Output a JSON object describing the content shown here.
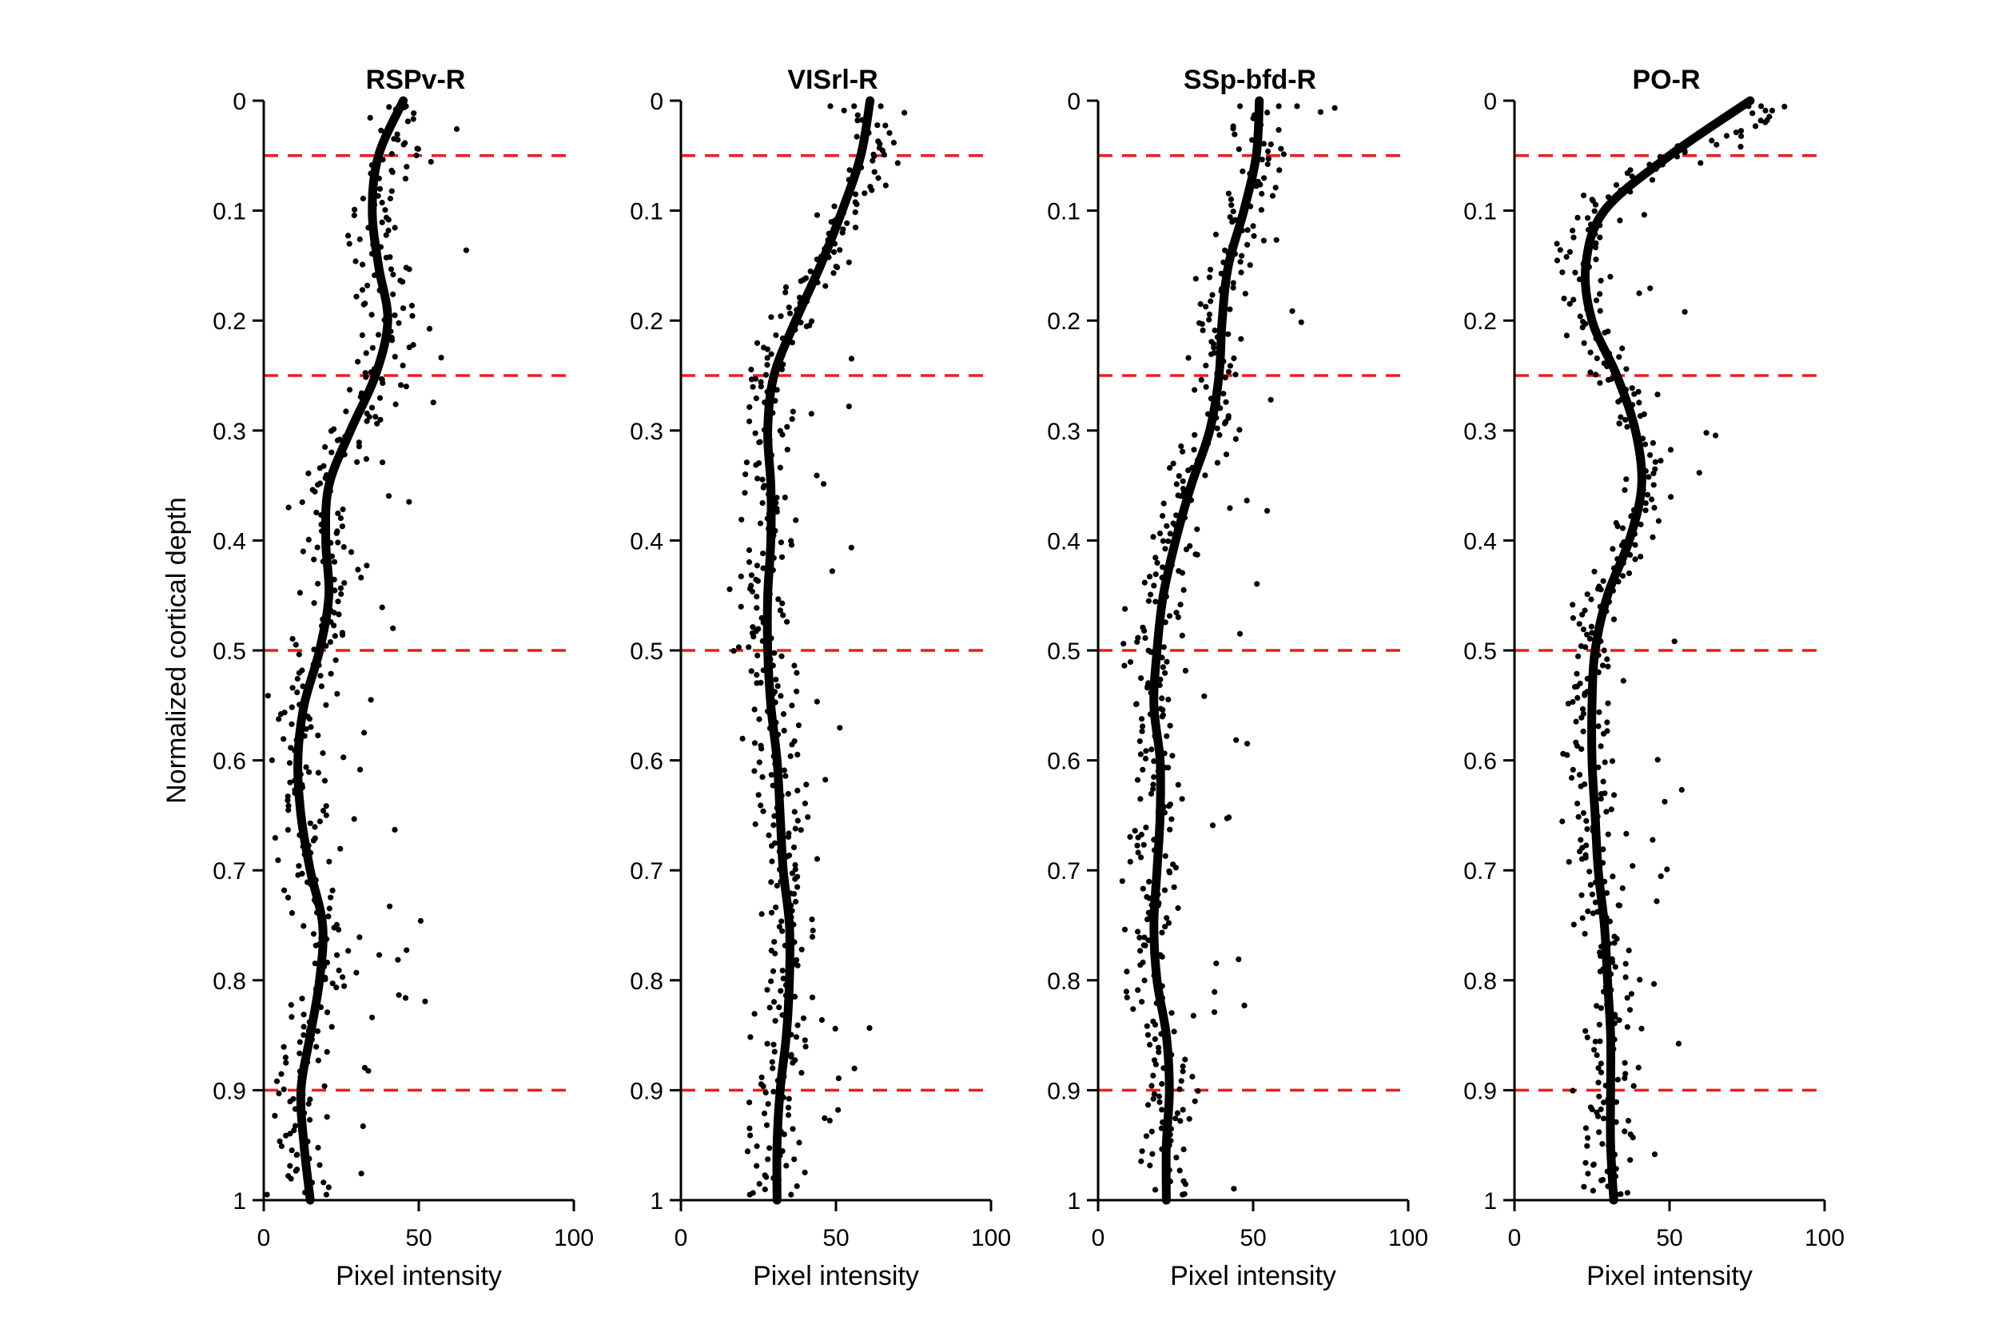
{
  "chart_data": [
    {
      "type": "scatter",
      "title": "RSPv-R",
      "xlabel": "Pixel intensity",
      "ylabel": "Normalized cortical depth",
      "xlim": [
        0,
        100
      ],
      "ylim": [
        1,
        0
      ],
      "x_ticks": [
        "0",
        "50",
        "100"
      ],
      "y_ticks": [
        "0",
        "0.1",
        "0.2",
        "0.3",
        "0.4",
        "0.5",
        "0.6",
        "0.7",
        "0.8",
        "0.9",
        "1"
      ],
      "reference_lines": [
        0.05,
        0.25,
        0.5,
        0.9
      ],
      "reference_line_color": "#e8201c",
      "trend_color": "#000000",
      "point_color": "#000000",
      "trend": {
        "depth": [
          0,
          0.05,
          0.1,
          0.15,
          0.2,
          0.25,
          0.3,
          0.35,
          0.4,
          0.45,
          0.5,
          0.55,
          0.6,
          0.65,
          0.7,
          0.75,
          0.8,
          0.85,
          0.9,
          0.95,
          1.0
        ],
        "intensity": [
          45,
          37,
          35,
          37,
          40,
          36,
          28,
          21,
          20,
          21,
          18,
          13,
          11,
          12,
          15,
          19,
          18,
          15,
          12,
          13,
          15
        ]
      },
      "scatter_profile": [
        [
          0.02,
          42
        ],
        [
          0.05,
          45
        ],
        [
          0.1,
          35
        ],
        [
          0.15,
          38
        ],
        [
          0.2,
          42
        ],
        [
          0.25,
          38
        ],
        [
          0.3,
          26
        ],
        [
          0.35,
          20
        ],
        [
          0.4,
          22
        ],
        [
          0.45,
          22
        ],
        [
          0.5,
          18
        ],
        [
          0.55,
          12
        ],
        [
          0.6,
          10
        ],
        [
          0.65,
          13
        ],
        [
          0.7,
          14
        ],
        [
          0.75,
          20
        ],
        [
          0.8,
          22
        ],
        [
          0.85,
          14
        ],
        [
          0.9,
          12
        ],
        [
          0.95,
          12
        ],
        [
          0.99,
          12
        ]
      ]
    },
    {
      "type": "scatter",
      "title": "VISrl-R",
      "xlabel": "Pixel intensity",
      "ylabel": "",
      "xlim": [
        0,
        100
      ],
      "ylim": [
        1,
        0
      ],
      "x_ticks": [
        "0",
        "50",
        "100"
      ],
      "y_ticks": [
        "0",
        "0.1",
        "0.2",
        "0.3",
        "0.4",
        "0.5",
        "0.6",
        "0.7",
        "0.8",
        "0.9",
        "1"
      ],
      "reference_lines": [
        0.05,
        0.25,
        0.5,
        0.9
      ],
      "reference_line_color": "#e8201c",
      "trend_color": "#000000",
      "point_color": "#000000",
      "trend": {
        "depth": [
          0,
          0.05,
          0.1,
          0.15,
          0.2,
          0.25,
          0.3,
          0.35,
          0.4,
          0.45,
          0.5,
          0.55,
          0.6,
          0.65,
          0.7,
          0.75,
          0.8,
          0.85,
          0.9,
          0.95,
          1.0
        ],
        "intensity": [
          61,
          58,
          52,
          45,
          37,
          30,
          28,
          29,
          29,
          28,
          28,
          29,
          31,
          32,
          33,
          35,
          35,
          34,
          32,
          31,
          31
        ]
      },
      "scatter_profile": [
        [
          0.02,
          58
        ],
        [
          0.05,
          64
        ],
        [
          0.1,
          52
        ],
        [
          0.15,
          44
        ],
        [
          0.2,
          35
        ],
        [
          0.25,
          26
        ],
        [
          0.3,
          28
        ],
        [
          0.35,
          28
        ],
        [
          0.4,
          30
        ],
        [
          0.45,
          25
        ],
        [
          0.5,
          27
        ],
        [
          0.55,
          30
        ],
        [
          0.6,
          32
        ],
        [
          0.65,
          32
        ],
        [
          0.7,
          33
        ],
        [
          0.75,
          36
        ],
        [
          0.8,
          36
        ],
        [
          0.85,
          34
        ],
        [
          0.9,
          30
        ],
        [
          0.95,
          31
        ],
        [
          0.99,
          30
        ]
      ]
    },
    {
      "type": "scatter",
      "title": "SSp-bfd-R",
      "xlabel": "Pixel intensity",
      "ylabel": "",
      "xlim": [
        0,
        100
      ],
      "ylim": [
        1,
        0
      ],
      "x_ticks": [
        "0",
        "50",
        "100"
      ],
      "y_ticks": [
        "0",
        "0.1",
        "0.2",
        "0.3",
        "0.4",
        "0.5",
        "0.6",
        "0.7",
        "0.8",
        "0.9",
        "1"
      ],
      "reference_lines": [
        0.05,
        0.25,
        0.5,
        0.9
      ],
      "reference_line_color": "#e8201c",
      "trend_color": "#000000",
      "point_color": "#000000",
      "trend": {
        "depth": [
          0,
          0.05,
          0.1,
          0.15,
          0.2,
          0.25,
          0.3,
          0.35,
          0.4,
          0.45,
          0.5,
          0.55,
          0.6,
          0.65,
          0.7,
          0.75,
          0.8,
          0.85,
          0.9,
          0.95,
          1.0
        ],
        "intensity": [
          52,
          51,
          47,
          42,
          40,
          39,
          36,
          30,
          25,
          21,
          19,
          18,
          20,
          20,
          19,
          18,
          19,
          22,
          23,
          22,
          22
        ]
      },
      "scatter_profile": [
        [
          0.02,
          52
        ],
        [
          0.05,
          55
        ],
        [
          0.1,
          46
        ],
        [
          0.15,
          42
        ],
        [
          0.2,
          38
        ],
        [
          0.25,
          40
        ],
        [
          0.3,
          36
        ],
        [
          0.35,
          28
        ],
        [
          0.4,
          24
        ],
        [
          0.45,
          20
        ],
        [
          0.5,
          18
        ],
        [
          0.55,
          18
        ],
        [
          0.6,
          20
        ],
        [
          0.65,
          20
        ],
        [
          0.7,
          18
        ],
        [
          0.75,
          16
        ],
        [
          0.8,
          18
        ],
        [
          0.85,
          22
        ],
        [
          0.9,
          23
        ],
        [
          0.95,
          22
        ],
        [
          0.99,
          22
        ]
      ]
    },
    {
      "type": "scatter",
      "title": "PO-R",
      "xlabel": "Pixel intensity",
      "ylabel": "",
      "xlim": [
        0,
        100
      ],
      "ylim": [
        1,
        0
      ],
      "x_ticks": [
        "0",
        "50",
        "100"
      ],
      "y_ticks": [
        "0",
        "0.1",
        "0.2",
        "0.3",
        "0.4",
        "0.5",
        "0.6",
        "0.7",
        "0.8",
        "0.9",
        "1"
      ],
      "reference_lines": [
        0.05,
        0.25,
        0.5,
        0.9
      ],
      "reference_line_color": "#e8201c",
      "trend_color": "#000000",
      "point_color": "#000000",
      "trend": {
        "depth": [
          0,
          0.05,
          0.1,
          0.15,
          0.2,
          0.25,
          0.3,
          0.35,
          0.4,
          0.45,
          0.5,
          0.55,
          0.6,
          0.65,
          0.7,
          0.75,
          0.8,
          0.85,
          0.9,
          0.95,
          1.0
        ],
        "intensity": [
          76,
          50,
          29,
          23,
          25,
          33,
          39,
          41,
          37,
          30,
          26,
          25,
          25,
          26,
          27,
          29,
          30,
          31,
          31,
          31,
          32
        ]
      },
      "scatter_profile": [
        [
          0.02,
          80
        ],
        [
          0.05,
          50
        ],
        [
          0.1,
          28
        ],
        [
          0.15,
          20
        ],
        [
          0.2,
          26
        ],
        [
          0.25,
          32
        ],
        [
          0.3,
          40
        ],
        [
          0.35,
          42
        ],
        [
          0.4,
          38
        ],
        [
          0.45,
          26
        ],
        [
          0.5,
          24
        ],
        [
          0.55,
          24
        ],
        [
          0.6,
          24
        ],
        [
          0.65,
          25
        ],
        [
          0.7,
          28
        ],
        [
          0.75,
          28
        ],
        [
          0.8,
          30
        ],
        [
          0.85,
          30
        ],
        [
          0.9,
          31
        ],
        [
          0.95,
          30
        ],
        [
          0.99,
          32
        ]
      ]
    }
  ]
}
